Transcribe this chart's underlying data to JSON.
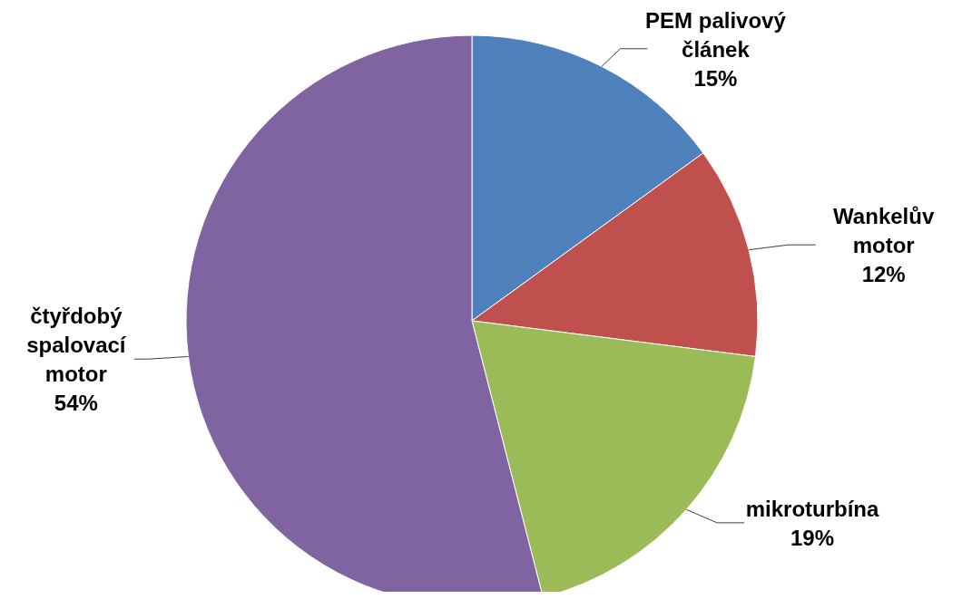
{
  "chart_data": {
    "type": "pie",
    "categories": [
      "PEM palivový článek",
      "Wankelův motor",
      "mikroturbína",
      "čtyřdobý spalovací motor"
    ],
    "values": [
      15,
      12,
      19,
      54
    ],
    "colors": [
      "#4f81bd",
      "#c0504d",
      "#9bbb59",
      "#8064a2"
    ],
    "value_labels": [
      "15%",
      "12%",
      "19%",
      "54%"
    ],
    "legend": false
  }
}
